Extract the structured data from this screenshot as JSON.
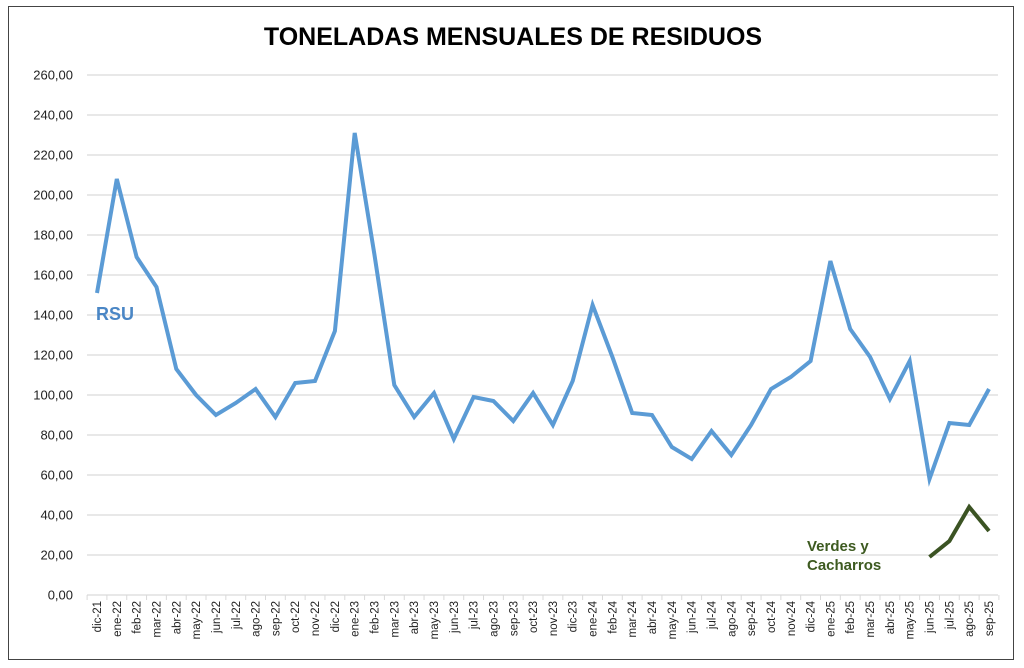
{
  "chart_data": {
    "type": "line",
    "title": "TONELADAS MENSUALES DE RESIDUOS",
    "xlabel": "",
    "ylabel": "",
    "ylim": [
      0,
      260
    ],
    "ytick_labels": [
      "0,00",
      "20,00",
      "40,00",
      "60,00",
      "80,00",
      "100,00",
      "120,00",
      "140,00",
      "160,00",
      "180,00",
      "200,00",
      "220,00",
      "240,00",
      "260,00"
    ],
    "grid": true,
    "categories": [
      "dic-21",
      "ene-22",
      "feb-22",
      "mar-22",
      "abr-22",
      "may-22",
      "jun-22",
      "jul-22",
      "ago-22",
      "sep-22",
      "oct-22",
      "nov-22",
      "dic-22",
      "ene-23",
      "feb-23",
      "mar-23",
      "abr-23",
      "may-23",
      "jun-23",
      "jul-23",
      "ago-23",
      "sep-23",
      "oct-23",
      "nov-23",
      "dic-23",
      "ene-24",
      "feb-24",
      "mar-24",
      "abr-24",
      "may-24",
      "jun-24",
      "jul-24",
      "ago-24",
      "sep-24",
      "oct-24",
      "nov-24",
      "dic-24",
      "ene-25",
      "feb-25",
      "mar-25",
      "abr-25",
      "may-25",
      "jun-25",
      "jul-25",
      "ago-25",
      "sep-25"
    ],
    "series": [
      {
        "name": "RSU",
        "color": "#5b9bd5",
        "values": [
          151,
          208,
          169,
          154,
          113,
          100,
          90,
          96,
          103,
          89,
          106,
          107,
          132,
          231,
          170,
          105,
          89,
          101,
          78,
          99,
          97,
          87,
          101,
          85,
          107,
          145,
          119,
          91,
          90,
          74,
          68,
          82,
          70,
          85,
          103,
          109,
          117,
          167,
          133,
          119,
          98,
          117,
          58,
          86,
          85,
          103
        ]
      },
      {
        "name": "Verdes y Cacharros",
        "color": "#3b5323",
        "values": [
          null,
          null,
          null,
          null,
          null,
          null,
          null,
          null,
          null,
          null,
          null,
          null,
          null,
          null,
          null,
          null,
          null,
          null,
          null,
          null,
          null,
          null,
          null,
          null,
          null,
          null,
          null,
          null,
          null,
          null,
          null,
          null,
          null,
          null,
          null,
          null,
          null,
          null,
          null,
          null,
          null,
          null,
          19,
          27,
          44,
          32
        ]
      }
    ],
    "annotations": {
      "rsu": "RSU",
      "verdes_line1": "Verdes y",
      "verdes_line2": "Cacharros"
    }
  }
}
